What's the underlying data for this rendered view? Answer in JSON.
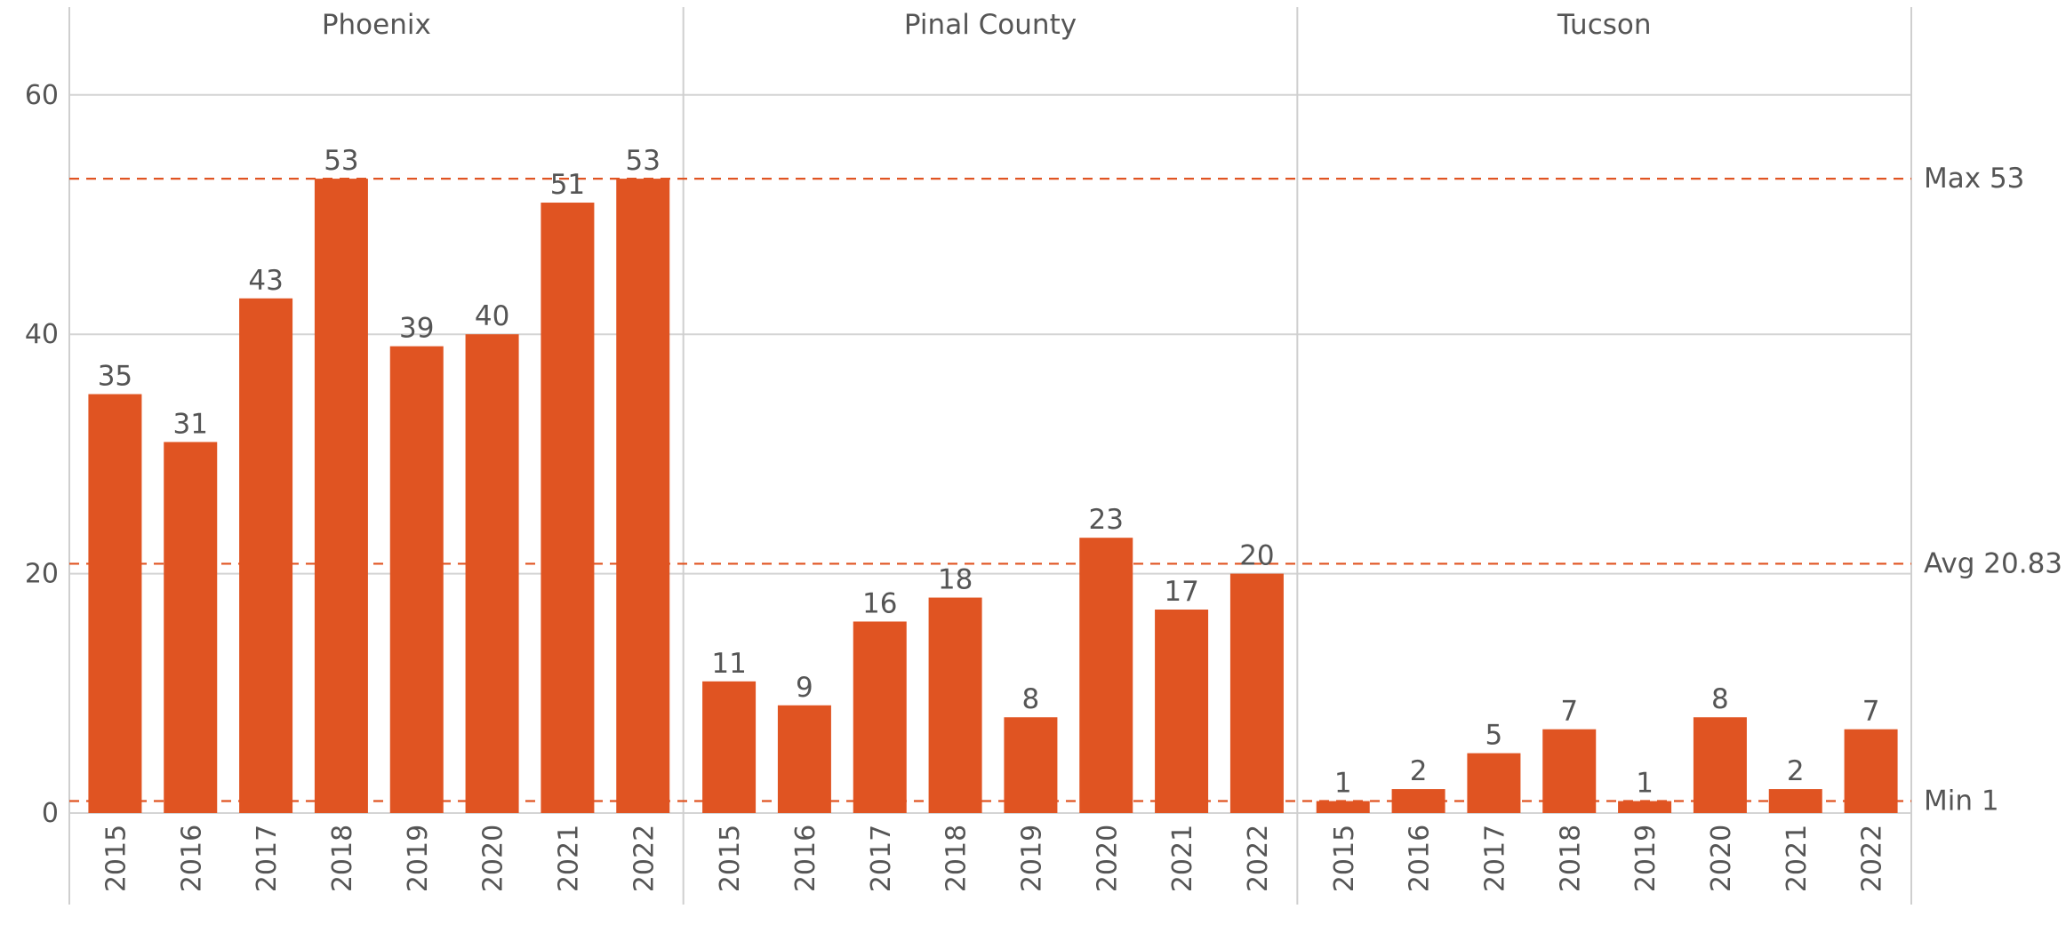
{
  "chart_data": {
    "type": "bar",
    "title": "",
    "xlabel": "",
    "ylabel": "",
    "ylim": [
      -6,
      67
    ],
    "y_ticks": [
      0,
      20,
      40,
      60
    ],
    "y_tick_labels": [
      "0",
      "20",
      "40",
      "60"
    ],
    "grid": true,
    "bar_color": "#E05422",
    "reference_line_color": "#E05422",
    "categories": [
      "2015",
      "2016",
      "2017",
      "2018",
      "2019",
      "2020",
      "2021",
      "2022"
    ],
    "panels": [
      {
        "name": "Phoenix",
        "values": [
          35,
          31,
          43,
          53,
          39,
          40,
          51,
          53
        ]
      },
      {
        "name": "Pinal County",
        "values": [
          11,
          9,
          16,
          18,
          8,
          23,
          17,
          20
        ]
      },
      {
        "name": "Tucson",
        "values": [
          1,
          2,
          5,
          7,
          1,
          8,
          2,
          7
        ]
      }
    ],
    "reference_lines": [
      {
        "label": "Max 53",
        "value": 53
      },
      {
        "label": "Avg 20.83",
        "value": 20.83
      },
      {
        "label": "Min 1",
        "value": 1
      }
    ]
  }
}
